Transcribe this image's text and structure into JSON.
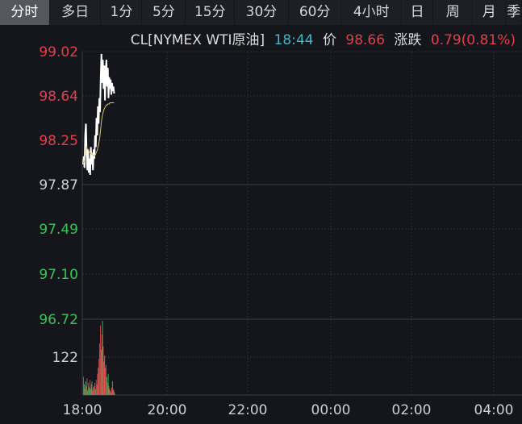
{
  "tabs": [
    {
      "label": "分时",
      "active": true
    },
    {
      "label": "多日"
    },
    {
      "label": "1分"
    },
    {
      "label": "5分"
    },
    {
      "label": "15分"
    },
    {
      "label": "30分"
    },
    {
      "label": "60分"
    },
    {
      "label": "4小时"
    },
    {
      "label": "日"
    },
    {
      "label": "周"
    },
    {
      "label": "月"
    },
    {
      "label": "季"
    }
  ],
  "header": {
    "symbol": "CL[NYMEX WTI原油]",
    "time": "18:44",
    "price_label": "价",
    "price": "98.66",
    "change_label": "涨跌",
    "change": "0.79(0.81%)"
  },
  "colors": {
    "up": "#e2404a",
    "down": "#3cc15a",
    "neutral": "#cfd0d4",
    "time": "#45b6c6",
    "price_line": "#ffffff",
    "avg_line": "#d8c06a"
  },
  "chart_data": {
    "type": "line",
    "price_axis": {
      "ticks": [
        "99.02",
        "98.64",
        "98.25",
        "97.87",
        "97.49",
        "97.10",
        "96.72"
      ],
      "ylim": [
        96.72,
        99.02
      ],
      "reference": 97.87
    },
    "volume_axis": {
      "ticks": [
        "122"
      ]
    },
    "time_axis": {
      "ticks": [
        "18:00",
        "20:00",
        "22:00",
        "00:00",
        "02:00",
        "04:00"
      ]
    },
    "minutes": [
      0,
      1,
      2,
      3,
      4,
      5,
      6,
      7,
      8,
      9,
      10,
      11,
      12,
      13,
      14,
      15,
      16,
      17,
      18,
      19,
      20,
      21,
      22,
      23,
      24,
      25,
      26,
      27,
      28,
      29,
      30,
      31,
      32,
      33,
      34,
      35,
      36,
      37,
      38,
      39,
      40,
      41,
      42,
      43,
      44
    ],
    "price": [
      98.05,
      98.12,
      98.02,
      98.3,
      98.4,
      98.15,
      98.0,
      98.18,
      97.98,
      98.1,
      97.96,
      98.2,
      98.05,
      98.15,
      98.0,
      98.18,
      98.1,
      98.3,
      98.2,
      98.45,
      98.3,
      98.55,
      98.4,
      98.62,
      98.5,
      98.8,
      99.0,
      98.75,
      98.95,
      98.7,
      98.9,
      98.6,
      98.85,
      98.95,
      98.72,
      98.88,
      98.62,
      98.8,
      98.7,
      98.78,
      98.65,
      98.75,
      98.68,
      98.72,
      98.66
    ],
    "average": [
      98.05,
      98.08,
      98.07,
      98.12,
      98.18,
      98.2,
      98.18,
      98.18,
      98.16,
      98.16,
      98.14,
      98.15,
      98.14,
      98.14,
      98.13,
      98.13,
      98.12,
      98.13,
      98.14,
      98.16,
      98.17,
      98.2,
      98.22,
      98.26,
      98.3,
      98.36,
      98.42,
      98.46,
      98.49,
      98.51,
      98.53,
      98.54,
      98.55,
      98.56,
      98.56,
      98.57,
      98.57,
      98.57,
      98.58,
      98.58,
      98.58,
      98.58,
      98.58,
      98.58,
      98.58
    ],
    "volume": [
      60,
      35,
      20,
      45,
      30,
      55,
      15,
      40,
      25,
      50,
      20,
      35,
      45,
      15,
      25,
      30,
      40,
      20,
      50,
      35,
      70,
      90,
      120,
      170,
      230,
      150,
      200,
      245,
      160,
      110,
      130,
      90,
      100,
      60,
      40,
      70,
      30,
      20,
      15,
      10,
      25,
      45,
      20,
      15,
      8
    ],
    "volume_up": [
      true,
      false,
      true,
      false,
      true,
      true,
      false,
      true,
      false,
      true,
      false,
      true,
      false,
      true,
      false,
      true,
      true,
      false,
      true,
      true,
      true,
      false,
      true,
      true,
      true,
      false,
      true,
      false,
      true,
      true,
      false,
      true,
      true,
      false,
      true,
      false,
      true,
      false,
      true,
      false,
      true,
      false,
      true,
      false,
      true
    ]
  }
}
